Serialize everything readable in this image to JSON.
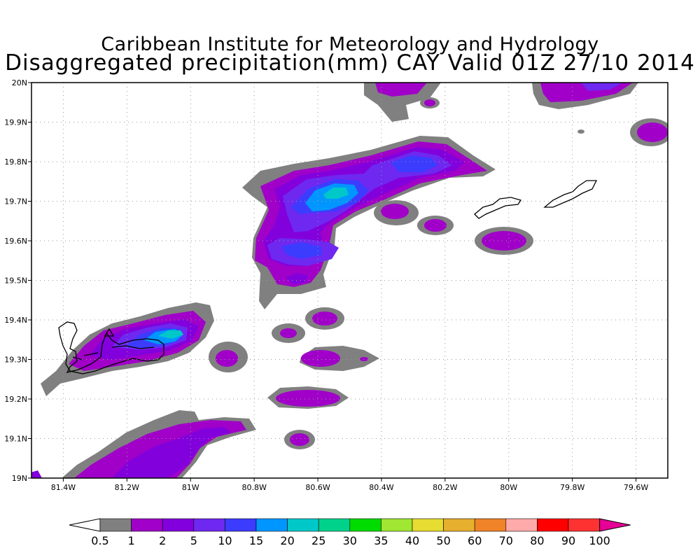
{
  "header": {
    "title_line1": "Caribbean Institute for Meteorology and Hydrology",
    "title_line2": "Disaggregated precipitation(mm) CAY Valid 01Z 27/10 2014"
  },
  "map": {
    "lon_range": [
      -81.5,
      -79.5
    ],
    "lat_range": [
      19.0,
      20.0
    ],
    "x_ticks": [
      {
        "value": -81.4,
        "label": "81.4W"
      },
      {
        "value": -81.2,
        "label": "81.2W"
      },
      {
        "value": -81.0,
        "label": "81W"
      },
      {
        "value": -80.8,
        "label": "80.8W"
      },
      {
        "value": -80.6,
        "label": "80.6W"
      },
      {
        "value": -80.4,
        "label": "80.4W"
      },
      {
        "value": -80.2,
        "label": "80.2W"
      },
      {
        "value": -80.0,
        "label": "80W"
      },
      {
        "value": -79.8,
        "label": "79.8W"
      },
      {
        "value": -79.6,
        "label": "79.6W"
      }
    ],
    "y_ticks": [
      {
        "value": 19.0,
        "label": "19N"
      },
      {
        "value": 19.1,
        "label": "19.1N"
      },
      {
        "value": 19.2,
        "label": "19.2N"
      },
      {
        "value": 19.3,
        "label": "19.3N"
      },
      {
        "value": 19.4,
        "label": "19.4N"
      },
      {
        "value": 19.5,
        "label": "19.5N"
      },
      {
        "value": 19.6,
        "label": "19.6N"
      },
      {
        "value": 19.7,
        "label": "19.7N"
      },
      {
        "value": 19.8,
        "label": "19.8N"
      },
      {
        "value": 19.9,
        "label": "19.9N"
      },
      {
        "value": 20.0,
        "label": "20N"
      }
    ],
    "grid": true
  },
  "colorbar": {
    "low_color": "#ffffff",
    "colors": [
      "#808080",
      "#a000c8",
      "#8200dc",
      "#6e28f0",
      "#3c3cff",
      "#0096ff",
      "#00c8c8",
      "#00d28c",
      "#00dc00",
      "#a0e632",
      "#e6dc32",
      "#e6af2d",
      "#f08228",
      "#ffaaaa",
      "#ff0000",
      "#ff3232"
    ],
    "high_color": "#e60096",
    "labels": [
      "0.5",
      "1",
      "2",
      "5",
      "10",
      "15",
      "20",
      "25",
      "30",
      "35",
      "40",
      "50",
      "60",
      "70",
      "80",
      "90",
      "100"
    ]
  }
}
